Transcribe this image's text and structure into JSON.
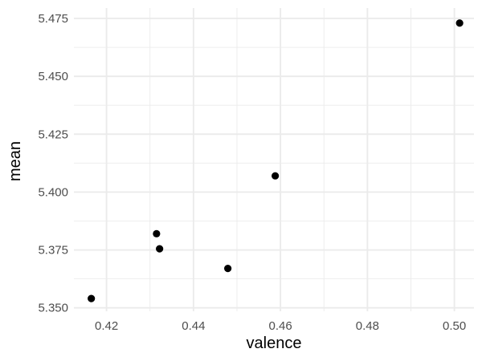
{
  "chart_data": {
    "type": "scatter",
    "title": "",
    "xlabel": "valence",
    "ylabel": "mean",
    "xlim": [
      0.4125,
      0.5045
    ],
    "ylim": [
      5.3485,
      5.4795
    ],
    "x_ticks": [
      0.42,
      0.44,
      0.46,
      0.48,
      0.5
    ],
    "x_tick_labels": [
      "0.42",
      "0.44",
      "0.46",
      "0.48",
      "0.50"
    ],
    "y_ticks": [
      5.35,
      5.375,
      5.4,
      5.425,
      5.45,
      5.475
    ],
    "y_tick_labels": [
      "5.350",
      "5.375",
      "5.400",
      "5.425",
      "5.450",
      "5.475"
    ],
    "grid": true,
    "legend": "none",
    "point_color": "#000000",
    "grid_color": "#ebebeb",
    "series": [
      {
        "x": [
          0.4165,
          0.4315,
          0.4322,
          0.4479,
          0.4588,
          0.5012
        ],
        "y": [
          5.354,
          5.382,
          5.3755,
          5.367,
          5.407,
          5.473
        ]
      }
    ]
  }
}
